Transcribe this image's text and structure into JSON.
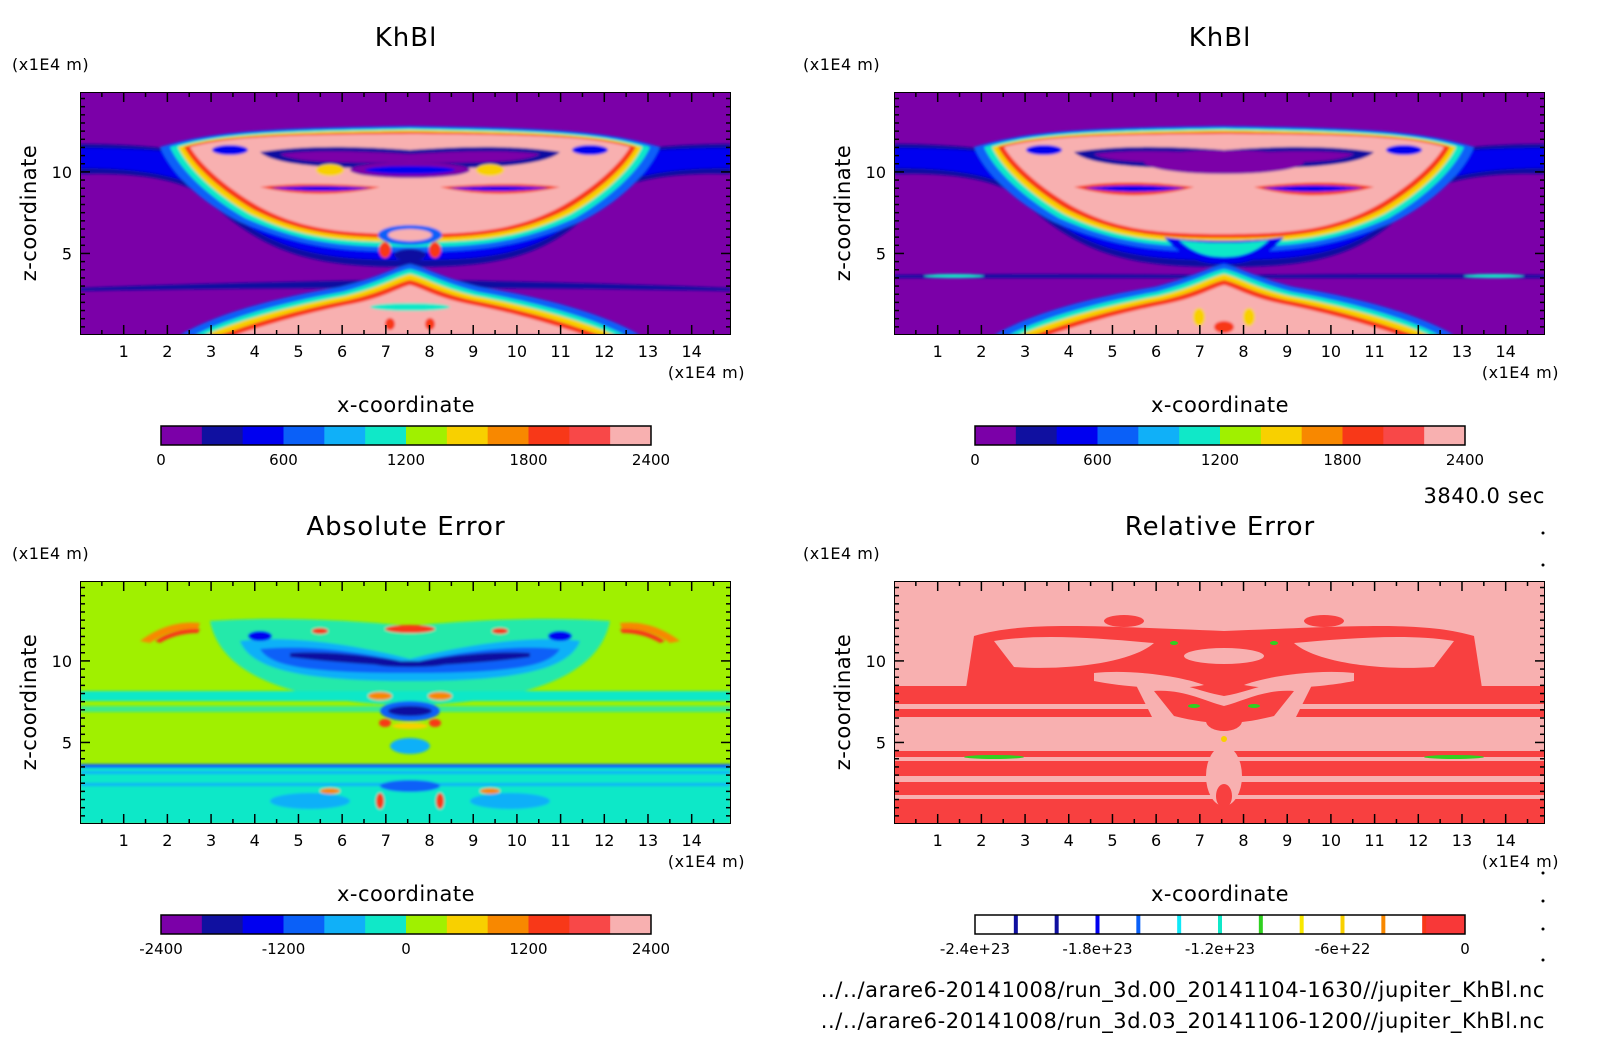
{
  "time_label": "3840.0 sec",
  "file_paths": [
    "../../arare6-20141008/run_3d.00_20141104-1630//jupiter_KhBl.nc",
    "../../arare6-20141008/run_3d.03_20141106-1200//jupiter_KhBl.nc"
  ],
  "chart_data": [
    {
      "type": "heatmap",
      "title": "KhBl",
      "xlabel": "x-coordinate",
      "ylabel": "z-coordinate",
      "x_unit": "(x1E4 m)",
      "y_unit": "(x1E4 m)",
      "xlim": [
        0,
        14.9
      ],
      "ylim": [
        0,
        14.9
      ],
      "x_ticks": [
        "1",
        "2",
        "3",
        "4",
        "5",
        "6",
        "7",
        "8",
        "9",
        "10",
        "11",
        "12",
        "13",
        "14"
      ],
      "y_ticks": [
        "5",
        "10"
      ],
      "colorbar": {
        "levels": 12,
        "colors": [
          "#7b00a8",
          "#1010a0",
          "#0000f0",
          "#0a60f8",
          "#10b0f8",
          "#10e8c8",
          "#a0f000",
          "#f8d000",
          "#f88800",
          "#f83818",
          "#f84848",
          "#f8b0b0"
        ],
        "tick_labels": [
          "0",
          "600",
          "1200",
          "1800",
          "2400"
        ],
        "range": [
          0,
          2400
        ]
      }
    },
    {
      "type": "heatmap",
      "title": "KhBl",
      "xlabel": "x-coordinate",
      "ylabel": "z-coordinate",
      "x_unit": "(x1E4 m)",
      "y_unit": "(x1E4 m)",
      "xlim": [
        0,
        14.9
      ],
      "ylim": [
        0,
        14.9
      ],
      "x_ticks": [
        "1",
        "2",
        "3",
        "4",
        "5",
        "6",
        "7",
        "8",
        "9",
        "10",
        "11",
        "12",
        "13",
        "14"
      ],
      "y_ticks": [
        "5",
        "10"
      ],
      "colorbar": {
        "levels": 12,
        "colors": [
          "#7b00a8",
          "#1010a0",
          "#0000f0",
          "#0a60f8",
          "#10b0f8",
          "#10e8c8",
          "#a0f000",
          "#f8d000",
          "#f88800",
          "#f83818",
          "#f84848",
          "#f8b0b0"
        ],
        "tick_labels": [
          "0",
          "600",
          "1200",
          "1800",
          "2400"
        ],
        "range": [
          0,
          2400
        ]
      }
    },
    {
      "type": "heatmap",
      "title": "Absolute Error",
      "xlabel": "x-coordinate",
      "ylabel": "z-coordinate",
      "x_unit": "(x1E4 m)",
      "y_unit": "(x1E4 m)",
      "xlim": [
        0,
        14.9
      ],
      "ylim": [
        0,
        14.9
      ],
      "x_ticks": [
        "1",
        "2",
        "3",
        "4",
        "5",
        "6",
        "7",
        "8",
        "9",
        "10",
        "11",
        "12",
        "13",
        "14"
      ],
      "y_ticks": [
        "5",
        "10"
      ],
      "colorbar": {
        "levels": 12,
        "colors": [
          "#7b00a8",
          "#1010a0",
          "#0000f0",
          "#0a60f8",
          "#10b0f8",
          "#10e8c8",
          "#a0f000",
          "#f8d000",
          "#f88800",
          "#f83818",
          "#f84848",
          "#f8b0b0"
        ],
        "tick_labels": [
          "-2400",
          "-1200",
          "0",
          "1200",
          "2400"
        ],
        "range": [
          -2400,
          2400
        ]
      }
    },
    {
      "type": "heatmap",
      "title": "Relative Error",
      "xlabel": "x-coordinate",
      "ylabel": "z-coordinate",
      "x_unit": "(x1E4 m)",
      "y_unit": "(x1E4 m)",
      "xlim": [
        0,
        14.9
      ],
      "ylim": [
        0,
        14.9
      ],
      "x_ticks": [
        "1",
        "2",
        "3",
        "4",
        "5",
        "6",
        "7",
        "8",
        "9",
        "10",
        "11",
        "12",
        "13",
        "14"
      ],
      "y_ticks": [
        "5",
        "10"
      ],
      "colorbar": {
        "levels": 12,
        "colors": [
          "#ffffff",
          "#ffffff",
          "#ffffff",
          "#ffffff",
          "#ffffff",
          "#ffffff",
          "#ffffff",
          "#ffffff",
          "#ffffff",
          "#ffffff",
          "#ffffff",
          "#f83838"
        ],
        "separators": [
          "#1010a0",
          "#1010a0",
          "#0000f0",
          "#0a60f8",
          "#10e8f8",
          "#10e8c8",
          "#30d020",
          "#f8e800",
          "#f8d000",
          "#f88800",
          "#f83818"
        ],
        "tick_labels": [
          "-2.4e+23",
          "-1.8e+23",
          "-1.2e+23",
          "-6e+22",
          "0"
        ],
        "range": [
          -2.4e+23,
          0
        ]
      }
    }
  ]
}
